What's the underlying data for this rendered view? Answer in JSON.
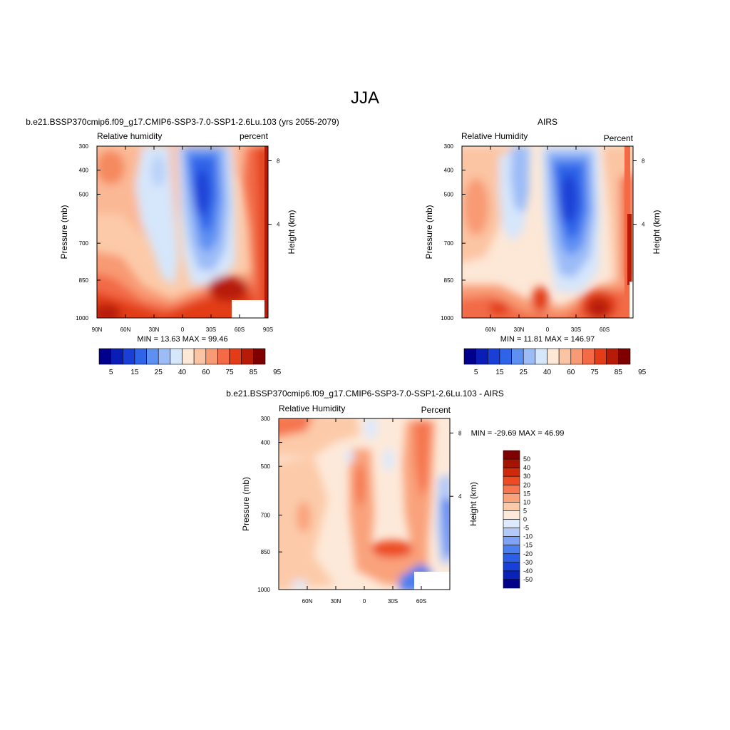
{
  "page_title": "JJA",
  "colors": {
    "seq_palette": [
      "#00008b",
      "#0a1db4",
      "#1a3fd6",
      "#2f64e8",
      "#5e90f2",
      "#9cbcf7",
      "#d6e6fb",
      "#fde7d6",
      "#fbc4a3",
      "#f89a73",
      "#f26b46",
      "#e23c19",
      "#b81a08",
      "#7e0000"
    ],
    "diff_palette": [
      "#00008b",
      "#0a22b8",
      "#1840d8",
      "#2c5ee8",
      "#4b7ef0",
      "#7ea3f5",
      "#b3c9f8",
      "#dde9fc",
      "#fde9d9",
      "#fccaa9",
      "#f9a27c",
      "#f5764f",
      "#ec4b24",
      "#cf2a0c",
      "#a51403",
      "#7e0000"
    ]
  },
  "chart_data": [
    {
      "type": "heatmap",
      "title": "b.e21.BSSP370cmip6.f09_g17.CMIP6-SSP3-7.0-SSP1-2.6Lu.103 (yrs 2055-2079)",
      "left_label": "Relative humidity",
      "right_label": "percent",
      "ylabel": "Pressure (mb)",
      "y2label": "Height (km)",
      "yticks": [
        "300",
        "400",
        "500",
        "700",
        "850",
        "1000"
      ],
      "y2ticks": [
        "8",
        "4"
      ],
      "xticks": [
        "90N",
        "60N",
        "30N",
        "0",
        "30S",
        "60S",
        "90S"
      ],
      "stats": "MIN =  13.63  MAX =  99.46",
      "colorbar_labels": [
        "5",
        "15",
        "25",
        "40",
        "60",
        "75",
        "85",
        "95"
      ],
      "x_range": [
        "90N",
        "90S"
      ],
      "y_range": [
        1000,
        300
      ]
    },
    {
      "type": "heatmap",
      "title": "AIRS",
      "left_label": "Relative Humidity",
      "right_label": "Percent",
      "ylabel": "Pressure (mb)",
      "y2label": "Height (km)",
      "yticks": [
        "300",
        "400",
        "500",
        "700",
        "850",
        "1000"
      ],
      "y2ticks": [
        "8",
        "4"
      ],
      "xticks": [
        "60N",
        "30N",
        "0",
        "30S",
        "60S"
      ],
      "stats": "MIN =  11.81  MAX = 146.97",
      "colorbar_labels": [
        "5",
        "15",
        "25",
        "40",
        "60",
        "75",
        "85",
        "95"
      ],
      "y_range": [
        1000,
        300
      ]
    },
    {
      "type": "heatmap",
      "title": "b.e21.BSSP370cmip6.f09_g17.CMIP6-SSP3-7.0-SSP1-2.6Lu.103 - AIRS",
      "left_label": "Relative Humidity",
      "right_label": "Percent",
      "ylabel": "Pressure (mb)",
      "y2label": "Height (km)",
      "yticks": [
        "300",
        "400",
        "500",
        "700",
        "850",
        "1000"
      ],
      "y2ticks": [
        "8",
        "4"
      ],
      "xticks": [
        "60N",
        "30N",
        "0",
        "30S",
        "60S"
      ],
      "stats": "MIN = -29.69  MAX =  46.99",
      "colorbar_labels": [
        "50",
        "40",
        "30",
        "20",
        "15",
        "10",
        "5",
        "0",
        "-5",
        "-10",
        "-15",
        "-20",
        "-30",
        "-40",
        "-50"
      ],
      "y_range": [
        1000,
        300
      ]
    }
  ]
}
